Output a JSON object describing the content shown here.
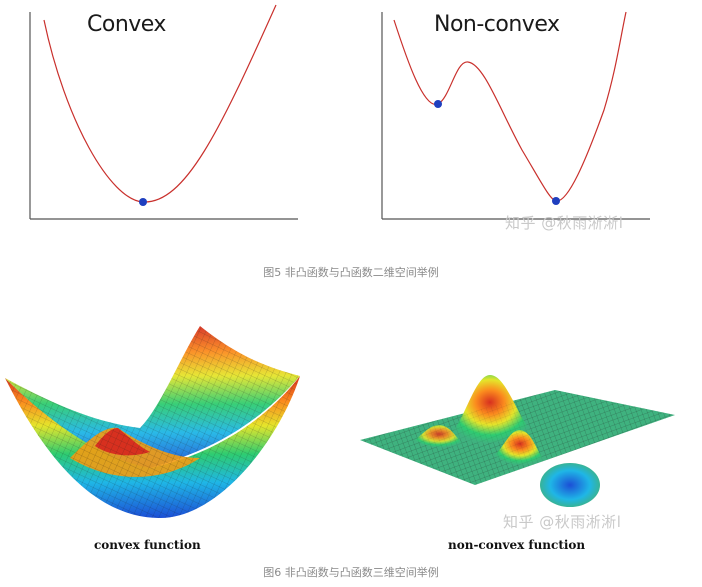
{
  "top": {
    "left_title": "Convex",
    "right_title": "Non-convex",
    "watermark": "知乎 @秋雨淅淅l",
    "caption": "图5 非凸函数与凸函数二维空间举例",
    "curve_color": "#c9302c",
    "point_color": "#1f3fbf",
    "axis_color": "#555555"
  },
  "bottom": {
    "left_label": "convex function",
    "right_label": "non-convex function",
    "watermark": "知乎 @秋雨淅淅l",
    "caption": "图6 非凸函数与凸函数三维空间举例"
  }
}
